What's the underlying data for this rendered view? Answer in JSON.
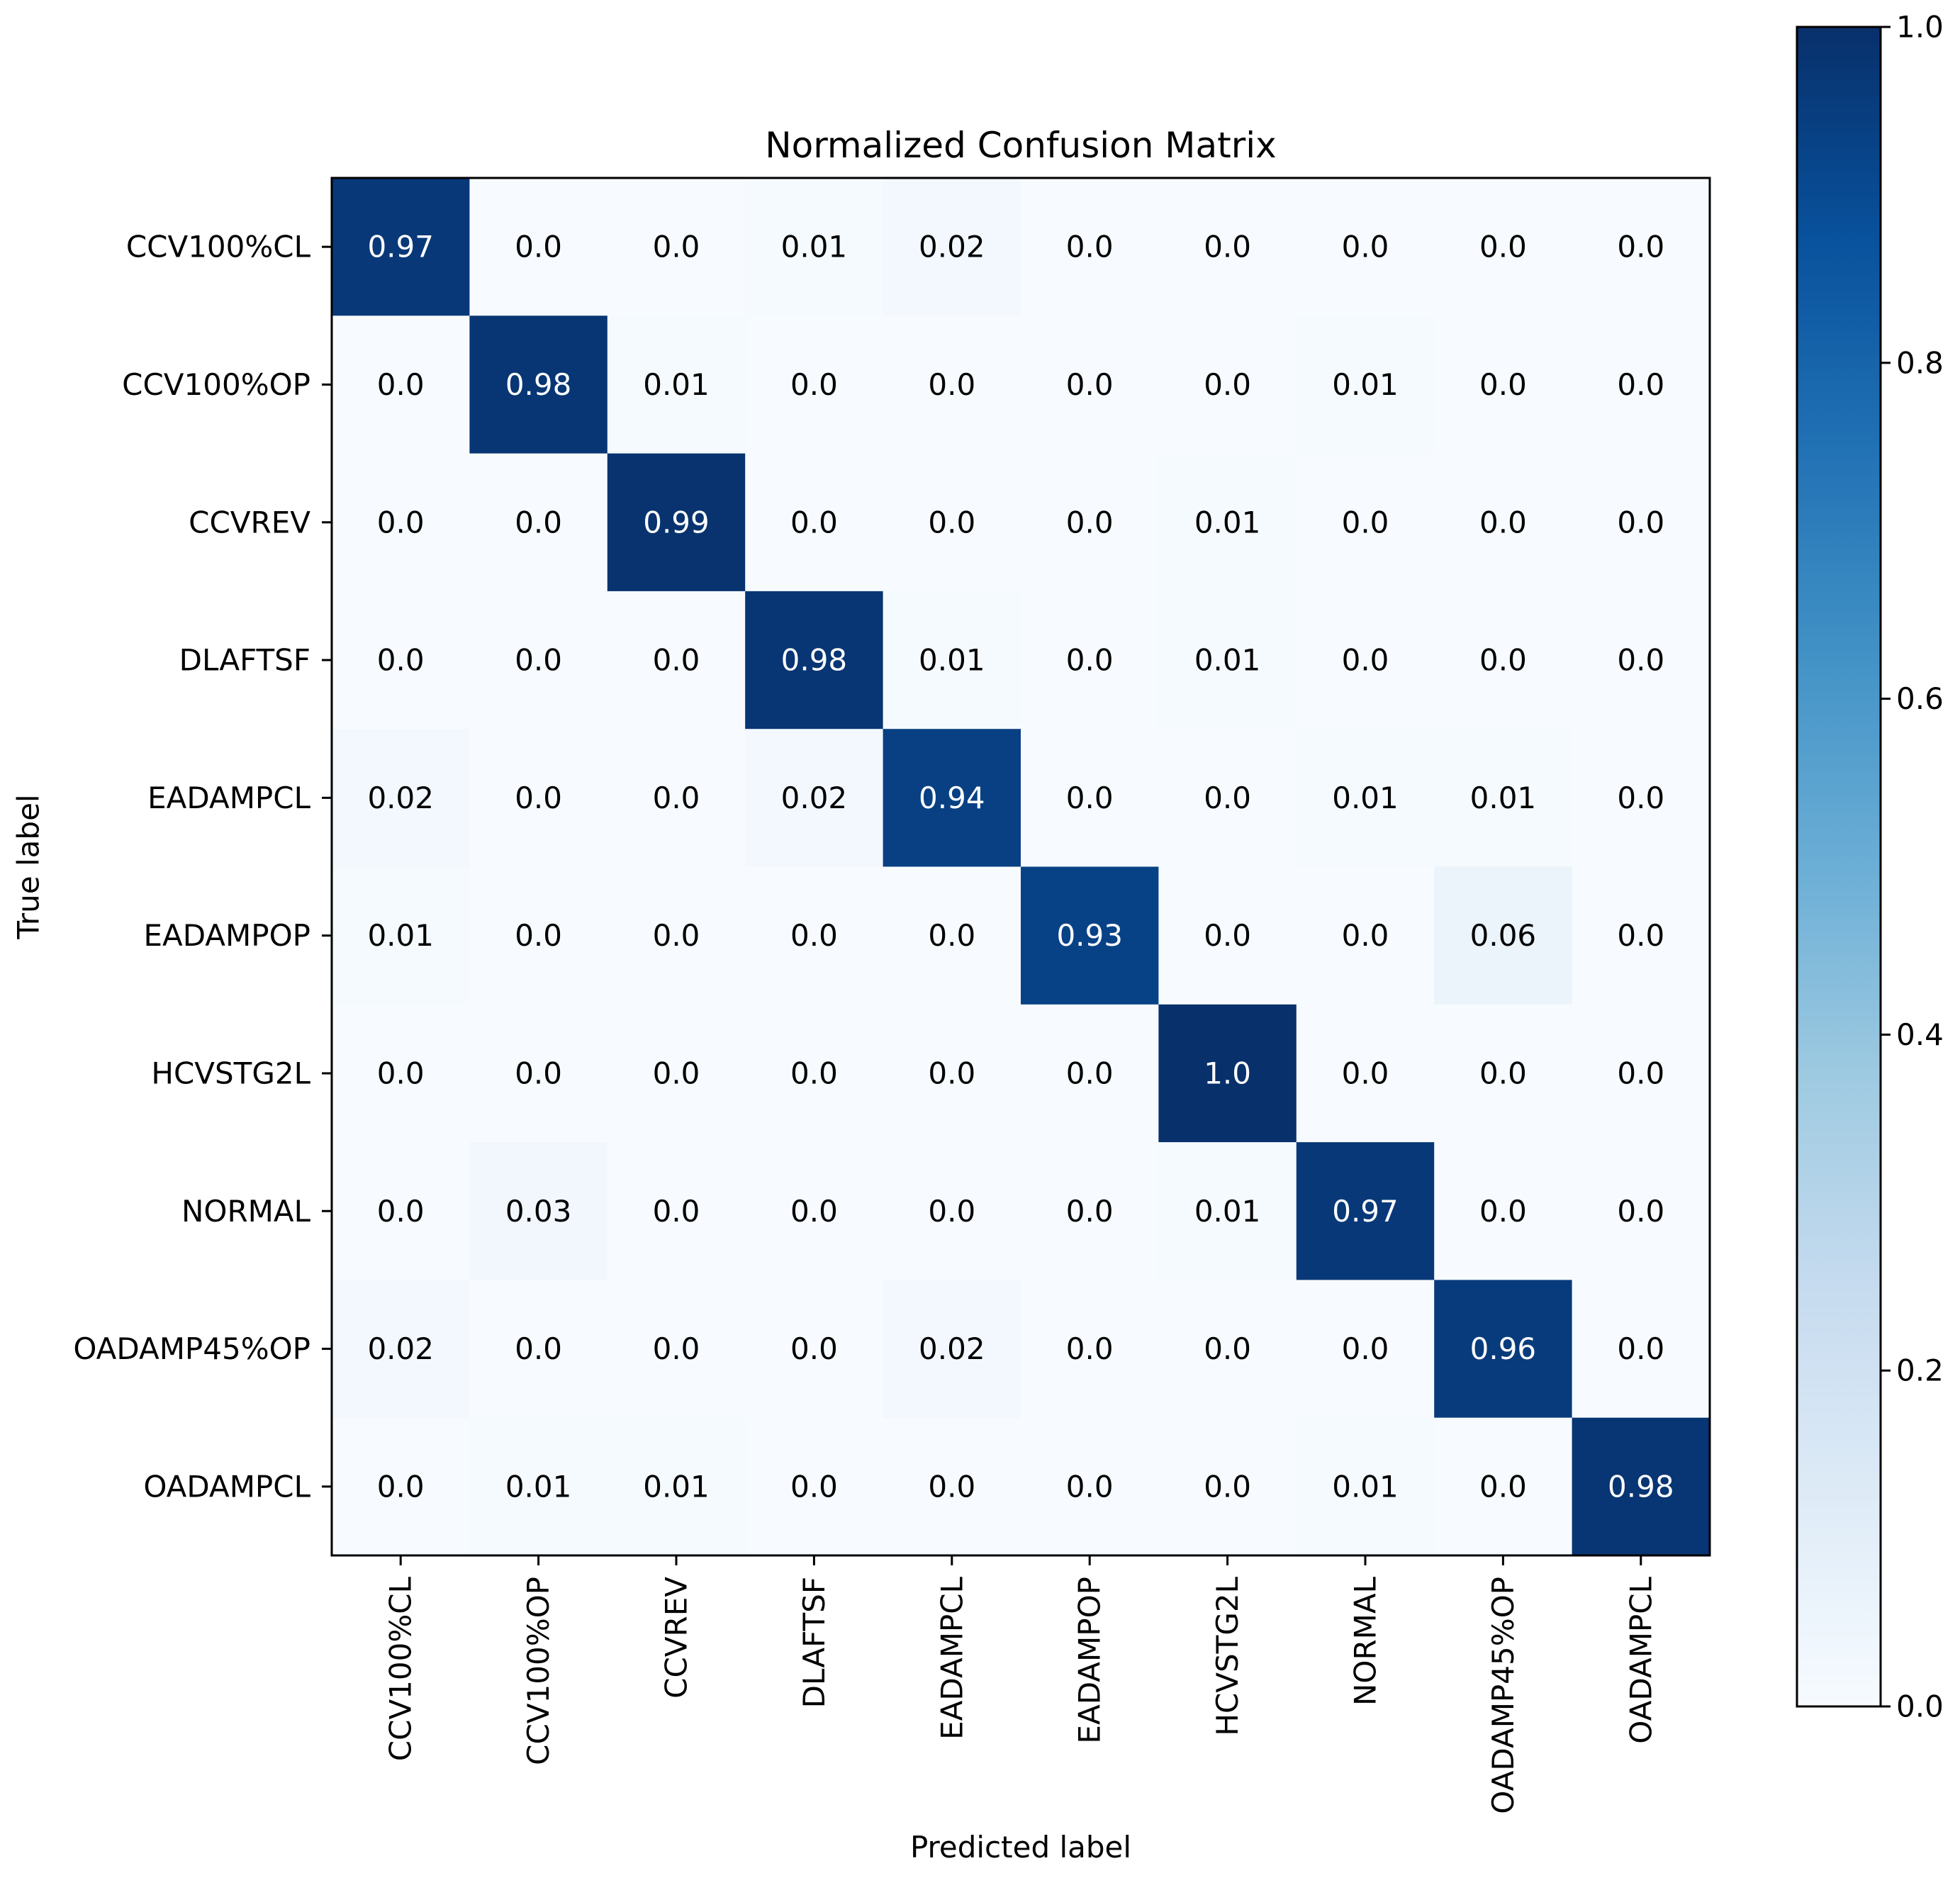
{
  "chart_data": {
    "type": "heatmap",
    "title": "Normalized Confusion Matrix",
    "xlabel": "Predicted label",
    "ylabel": "True label",
    "row_labels": [
      "CCV100%CL",
      "CCV100%OP",
      "CCVREV",
      "DLAFTSF",
      "EADAMPCL",
      "EADAMPOP",
      "HCVSTG2L",
      "NORMAL",
      "OADAMP45%OP",
      "OADAMPCL"
    ],
    "col_labels": [
      "CCV100%CL",
      "CCV100%OP",
      "CCVREV",
      "DLAFTSF",
      "EADAMPCL",
      "EADAMPOP",
      "HCVSTG2L",
      "NORMAL",
      "OADAMP45%OP",
      "OADAMPCL"
    ],
    "values": [
      [
        0.97,
        0.0,
        0.0,
        0.01,
        0.02,
        0.0,
        0.0,
        0.0,
        0.0,
        0.0
      ],
      [
        0.0,
        0.98,
        0.01,
        0.0,
        0.0,
        0.0,
        0.0,
        0.01,
        0.0,
        0.0
      ],
      [
        0.0,
        0.0,
        0.99,
        0.0,
        0.0,
        0.0,
        0.01,
        0.0,
        0.0,
        0.0
      ],
      [
        0.0,
        0.0,
        0.0,
        0.98,
        0.01,
        0.0,
        0.01,
        0.0,
        0.0,
        0.0
      ],
      [
        0.02,
        0.0,
        0.0,
        0.02,
        0.94,
        0.0,
        0.0,
        0.01,
        0.01,
        0.0
      ],
      [
        0.01,
        0.0,
        0.0,
        0.0,
        0.0,
        0.93,
        0.0,
        0.0,
        0.06,
        0.0
      ],
      [
        0.0,
        0.0,
        0.0,
        0.0,
        0.0,
        0.0,
        1.0,
        0.0,
        0.0,
        0.0
      ],
      [
        0.0,
        0.03,
        0.0,
        0.0,
        0.0,
        0.0,
        0.01,
        0.97,
        0.0,
        0.0
      ],
      [
        0.02,
        0.0,
        0.0,
        0.0,
        0.02,
        0.0,
        0.0,
        0.0,
        0.96,
        0.0
      ],
      [
        0.0,
        0.01,
        0.01,
        0.0,
        0.0,
        0.0,
        0.0,
        0.01,
        0.0,
        0.98
      ]
    ],
    "cell_text": [
      [
        "0.97",
        "0.0",
        "0.0",
        "0.01",
        "0.02",
        "0.0",
        "0.0",
        "0.0",
        "0.0",
        "0.0"
      ],
      [
        "0.0",
        "0.98",
        "0.01",
        "0.0",
        "0.0",
        "0.0",
        "0.0",
        "0.01",
        "0.0",
        "0.0"
      ],
      [
        "0.0",
        "0.0",
        "0.99",
        "0.0",
        "0.0",
        "0.0",
        "0.01",
        "0.0",
        "0.0",
        "0.0"
      ],
      [
        "0.0",
        "0.0",
        "0.0",
        "0.98",
        "0.01",
        "0.0",
        "0.01",
        "0.0",
        "0.0",
        "0.0"
      ],
      [
        "0.02",
        "0.0",
        "0.0",
        "0.02",
        "0.94",
        "0.0",
        "0.0",
        "0.01",
        "0.01",
        "0.0"
      ],
      [
        "0.01",
        "0.0",
        "0.0",
        "0.0",
        "0.0",
        "0.93",
        "0.0",
        "0.0",
        "0.06",
        "0.0"
      ],
      [
        "0.0",
        "0.0",
        "0.0",
        "0.0",
        "0.0",
        "0.0",
        "1.0",
        "0.0",
        "0.0",
        "0.0"
      ],
      [
        "0.0",
        "0.03",
        "0.0",
        "0.0",
        "0.0",
        "0.0",
        "0.01",
        "0.97",
        "0.0",
        "0.0"
      ],
      [
        "0.02",
        "0.0",
        "0.0",
        "0.0",
        "0.02",
        "0.0",
        "0.0",
        "0.0",
        "0.96",
        "0.0"
      ],
      [
        "0.0",
        "0.01",
        "0.01",
        "0.0",
        "0.0",
        "0.0",
        "0.0",
        "0.01",
        "0.0",
        "0.98"
      ]
    ],
    "colorbar": {
      "range": [
        0.0,
        1.0
      ],
      "ticks": [
        0.0,
        0.2,
        0.4,
        0.6,
        0.8,
        1.0
      ],
      "tick_labels": [
        "0.0",
        "0.2",
        "0.4",
        "0.6",
        "0.8",
        "1.0"
      ]
    },
    "colormap": "Blues",
    "colors": {
      "low": "#f7fbff",
      "high": "#08306b",
      "text_on_dark": "#ffffff",
      "text_on_light": "#000000"
    }
  }
}
